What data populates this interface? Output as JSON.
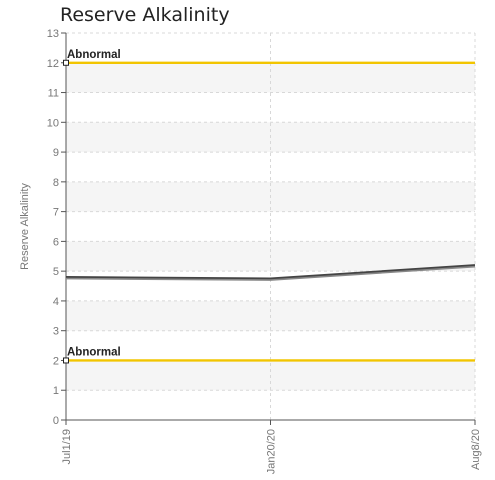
{
  "chart_data": {
    "type": "line",
    "title": "Reserve Alkalinity",
    "ylabel": "Reserve Alkalinity",
    "xlabel": "",
    "ylim": [
      0,
      13
    ],
    "yticks": [
      0,
      1,
      2,
      3,
      4,
      5,
      6,
      7,
      8,
      9,
      10,
      11,
      12,
      13
    ],
    "x_ticks": [
      "Jul1/19",
      "Jan20/20",
      "Aug8/20"
    ],
    "grid": true,
    "series": [
      {
        "x": [
          "Jul1/19",
          "Jan20/20",
          "Aug8/20"
        ],
        "values": [
          4.8,
          4.75,
          5.2
        ],
        "color": "#444444"
      },
      {
        "x": [
          "Jul1/19",
          "Jan20/20",
          "Aug8/20"
        ],
        "values": [
          4.75,
          4.7,
          5.15
        ],
        "color": "#888888"
      }
    ],
    "thresholds": [
      {
        "label": "Abnormal",
        "value": 12,
        "color": "#f2c500"
      },
      {
        "label": "Abnormal",
        "value": 2,
        "color": "#f2c500"
      }
    ]
  }
}
